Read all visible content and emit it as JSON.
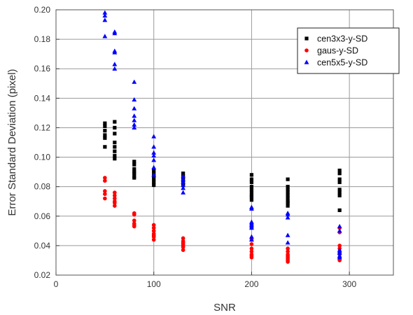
{
  "chart_data": {
    "type": "scatter",
    "xlabel": "SNR",
    "ylabel": "Error Standard Deviation (pixel)",
    "xlim": [
      0,
      345
    ],
    "ylim": [
      0.02,
      0.2
    ],
    "x_ticks": [
      0,
      100,
      200,
      300
    ],
    "y_ticks": [
      0.02,
      0.04,
      0.06,
      0.08,
      0.1,
      0.12,
      0.14,
      0.16,
      0.18,
      0.2
    ],
    "grid": true,
    "legend_position": "top-right",
    "series": [
      {
        "name": "cen3x3-y-SD",
        "color": "#000000",
        "marker": "square",
        "points": [
          [
            50,
            0.123
          ],
          [
            50,
            0.121
          ],
          [
            50,
            0.118
          ],
          [
            50,
            0.115
          ],
          [
            50,
            0.113
          ],
          [
            50,
            0.107
          ],
          [
            60,
            0.124
          ],
          [
            60,
            0.12
          ],
          [
            60,
            0.116
          ],
          [
            60,
            0.11
          ],
          [
            60,
            0.107
          ],
          [
            60,
            0.104
          ],
          [
            60,
            0.101
          ],
          [
            60,
            0.099
          ],
          [
            80,
            0.097
          ],
          [
            80,
            0.095
          ],
          [
            80,
            0.092
          ],
          [
            80,
            0.09
          ],
          [
            80,
            0.089
          ],
          [
            80,
            0.087
          ],
          [
            80,
            0.086
          ],
          [
            100,
            0.091
          ],
          [
            100,
            0.089
          ],
          [
            100,
            0.087
          ],
          [
            100,
            0.085
          ],
          [
            100,
            0.083
          ],
          [
            100,
            0.081
          ],
          [
            130,
            0.089
          ],
          [
            130,
            0.087
          ],
          [
            130,
            0.086
          ],
          [
            130,
            0.084
          ],
          [
            130,
            0.082
          ],
          [
            130,
            0.081
          ],
          [
            200,
            0.088
          ],
          [
            200,
            0.085
          ],
          [
            200,
            0.083
          ],
          [
            200,
            0.08
          ],
          [
            200,
            0.078
          ],
          [
            200,
            0.076
          ],
          [
            200,
            0.074
          ],
          [
            200,
            0.073
          ],
          [
            200,
            0.071
          ],
          [
            237,
            0.085
          ],
          [
            237,
            0.08
          ],
          [
            237,
            0.078
          ],
          [
            237,
            0.076
          ],
          [
            237,
            0.074
          ],
          [
            237,
            0.072
          ],
          [
            237,
            0.07
          ],
          [
            237,
            0.069
          ],
          [
            237,
            0.067
          ],
          [
            290,
            0.091
          ],
          [
            290,
            0.089
          ],
          [
            290,
            0.085
          ],
          [
            290,
            0.083
          ],
          [
            290,
            0.078
          ],
          [
            290,
            0.076
          ],
          [
            290,
            0.074
          ],
          [
            290,
            0.064
          ]
        ]
      },
      {
        "name": "gaus-y-SD",
        "color": "#ff0000",
        "marker": "circle",
        "points": [
          [
            50,
            0.086
          ],
          [
            50,
            0.084
          ],
          [
            50,
            0.077
          ],
          [
            50,
            0.075
          ],
          [
            50,
            0.072
          ],
          [
            60,
            0.076
          ],
          [
            60,
            0.074
          ],
          [
            60,
            0.072
          ],
          [
            60,
            0.07
          ],
          [
            60,
            0.069
          ],
          [
            60,
            0.067
          ],
          [
            80,
            0.062
          ],
          [
            80,
            0.061
          ],
          [
            80,
            0.057
          ],
          [
            80,
            0.055
          ],
          [
            80,
            0.054
          ],
          [
            80,
            0.053
          ],
          [
            100,
            0.054
          ],
          [
            100,
            0.052
          ],
          [
            100,
            0.05
          ],
          [
            100,
            0.048
          ],
          [
            100,
            0.047
          ],
          [
            100,
            0.046
          ],
          [
            100,
            0.044
          ],
          [
            130,
            0.045
          ],
          [
            130,
            0.043
          ],
          [
            130,
            0.042
          ],
          [
            130,
            0.041
          ],
          [
            130,
            0.04
          ],
          [
            130,
            0.039
          ],
          [
            130,
            0.037
          ],
          [
            200,
            0.044
          ],
          [
            200,
            0.041
          ],
          [
            200,
            0.038
          ],
          [
            200,
            0.036
          ],
          [
            200,
            0.034
          ],
          [
            200,
            0.033
          ],
          [
            200,
            0.032
          ],
          [
            237,
            0.038
          ],
          [
            237,
            0.036
          ],
          [
            237,
            0.034
          ],
          [
            237,
            0.033
          ],
          [
            237,
            0.032
          ],
          [
            237,
            0.031
          ],
          [
            237,
            0.03
          ],
          [
            237,
            0.029
          ],
          [
            290,
            0.052
          ],
          [
            290,
            0.049
          ],
          [
            290,
            0.04
          ],
          [
            290,
            0.038
          ],
          [
            290,
            0.034
          ],
          [
            290,
            0.032
          ],
          [
            290,
            0.031
          ],
          [
            290,
            0.03
          ]
        ]
      },
      {
        "name": "cen5x5-y-SD",
        "color": "#0000ff",
        "marker": "triangle",
        "points": [
          [
            50,
            0.198
          ],
          [
            50,
            0.196
          ],
          [
            50,
            0.193
          ],
          [
            50,
            0.182
          ],
          [
            60,
            0.185
          ],
          [
            60,
            0.184
          ],
          [
            60,
            0.172
          ],
          [
            60,
            0.171
          ],
          [
            60,
            0.163
          ],
          [
            60,
            0.16
          ],
          [
            80,
            0.151
          ],
          [
            80,
            0.139
          ],
          [
            80,
            0.133
          ],
          [
            80,
            0.128
          ],
          [
            80,
            0.125
          ],
          [
            80,
            0.122
          ],
          [
            80,
            0.12
          ],
          [
            100,
            0.114
          ],
          [
            100,
            0.107
          ],
          [
            100,
            0.103
          ],
          [
            100,
            0.101
          ],
          [
            100,
            0.098
          ],
          [
            100,
            0.093
          ],
          [
            100,
            0.088
          ],
          [
            130,
            0.087
          ],
          [
            130,
            0.085
          ],
          [
            130,
            0.083
          ],
          [
            130,
            0.081
          ],
          [
            130,
            0.079
          ],
          [
            130,
            0.076
          ],
          [
            200,
            0.066
          ],
          [
            200,
            0.065
          ],
          [
            200,
            0.056
          ],
          [
            200,
            0.055
          ],
          [
            200,
            0.054
          ],
          [
            200,
            0.053
          ],
          [
            200,
            0.052
          ],
          [
            200,
            0.046
          ],
          [
            200,
            0.044
          ],
          [
            237,
            0.062
          ],
          [
            237,
            0.061
          ],
          [
            237,
            0.059
          ],
          [
            237,
            0.047
          ],
          [
            237,
            0.042
          ],
          [
            290,
            0.053
          ],
          [
            290,
            0.05
          ],
          [
            290,
            0.037
          ],
          [
            290,
            0.036
          ],
          [
            290,
            0.035
          ],
          [
            290,
            0.033
          ],
          [
            290,
            0.032
          ]
        ]
      }
    ]
  }
}
